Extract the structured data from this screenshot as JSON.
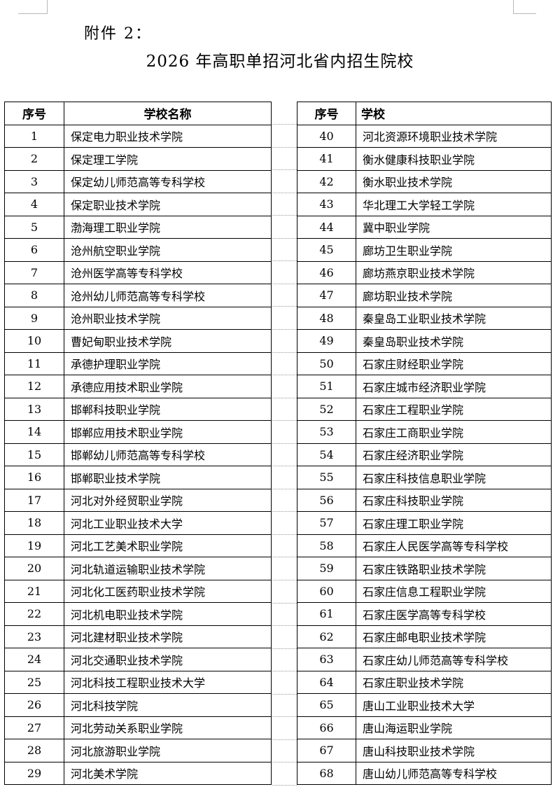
{
  "attachment_label": "附件 2：",
  "title": "2026 年高职单招河北省内招生院校",
  "left_table": {
    "headers": [
      "序号",
      "学校名称"
    ],
    "rows": [
      [
        "1",
        "保定电力职业技术学院"
      ],
      [
        "2",
        "保定理工学院"
      ],
      [
        "3",
        "保定幼儿师范高等专科学校"
      ],
      [
        "4",
        "保定职业技术学院"
      ],
      [
        "5",
        "渤海理工职业学院"
      ],
      [
        "6",
        "沧州航空职业学院"
      ],
      [
        "7",
        "沧州医学高等专科学校"
      ],
      [
        "8",
        "沧州幼儿师范高等专科学校"
      ],
      [
        "9",
        "沧州职业技术学院"
      ],
      [
        "10",
        "曹妃甸职业技术学院"
      ],
      [
        "11",
        "承德护理职业学院"
      ],
      [
        "12",
        "承德应用技术职业学院"
      ],
      [
        "13",
        "邯郸科技职业学院"
      ],
      [
        "14",
        "邯郸应用技术职业学院"
      ],
      [
        "15",
        "邯郸幼儿师范高等专科学校"
      ],
      [
        "16",
        "邯郸职业技术学院"
      ],
      [
        "17",
        "河北对外经贸职业学院"
      ],
      [
        "18",
        "河北工业职业技术大学"
      ],
      [
        "19",
        "河北工艺美术职业学院"
      ],
      [
        "20",
        "河北轨道运输职业技术学院"
      ],
      [
        "21",
        "河北化工医药职业技术学院"
      ],
      [
        "22",
        "河北机电职业技术学院"
      ],
      [
        "23",
        "河北建材职业技术学院"
      ],
      [
        "24",
        "河北交通职业技术学院"
      ],
      [
        "25",
        "河北科技工程职业技术大学"
      ],
      [
        "26",
        "河北科技学院"
      ],
      [
        "27",
        "河北劳动关系职业学院"
      ],
      [
        "28",
        "河北旅游职业学院"
      ],
      [
        "29",
        "河北美术学院"
      ]
    ]
  },
  "right_table": {
    "headers": [
      "序号",
      "学校"
    ],
    "rows": [
      [
        "40",
        "河北资源环境职业技术学院"
      ],
      [
        "41",
        "衡水健康科技职业学院"
      ],
      [
        "42",
        "衡水职业技术学院"
      ],
      [
        "43",
        "华北理工大学轻工学院"
      ],
      [
        "44",
        "冀中职业学院"
      ],
      [
        "45",
        "廊坊卫生职业学院"
      ],
      [
        "46",
        "廊坊燕京职业技术学院"
      ],
      [
        "47",
        "廊坊职业技术学院"
      ],
      [
        "48",
        "秦皇岛工业职业技术学院"
      ],
      [
        "49",
        "秦皇岛职业技术学院"
      ],
      [
        "50",
        "石家庄财经职业学院"
      ],
      [
        "51",
        "石家庄城市经济职业学院"
      ],
      [
        "52",
        "石家庄工程职业学院"
      ],
      [
        "53",
        "石家庄工商职业学院"
      ],
      [
        "54",
        "石家庄经济职业学院"
      ],
      [
        "55",
        "石家庄科技信息职业学院"
      ],
      [
        "56",
        "石家庄科技职业学院"
      ],
      [
        "57",
        "石家庄理工职业学院"
      ],
      [
        "58",
        "石家庄人民医学高等专科学校"
      ],
      [
        "59",
        "石家庄铁路职业技术学院"
      ],
      [
        "60",
        "石家庄信息工程职业学院"
      ],
      [
        "61",
        "石家庄医学高等专科学校"
      ],
      [
        "62",
        "石家庄邮电职业技术学院"
      ],
      [
        "63",
        "石家庄幼儿师范高等专科学校"
      ],
      [
        "64",
        "石家庄职业技术学院"
      ],
      [
        "65",
        "唐山工业职业技术大学"
      ],
      [
        "66",
        "唐山海运职业学院"
      ],
      [
        "67",
        "唐山科技职业技术学院"
      ],
      [
        "68",
        "唐山幼儿师范高等专科学校"
      ]
    ]
  }
}
